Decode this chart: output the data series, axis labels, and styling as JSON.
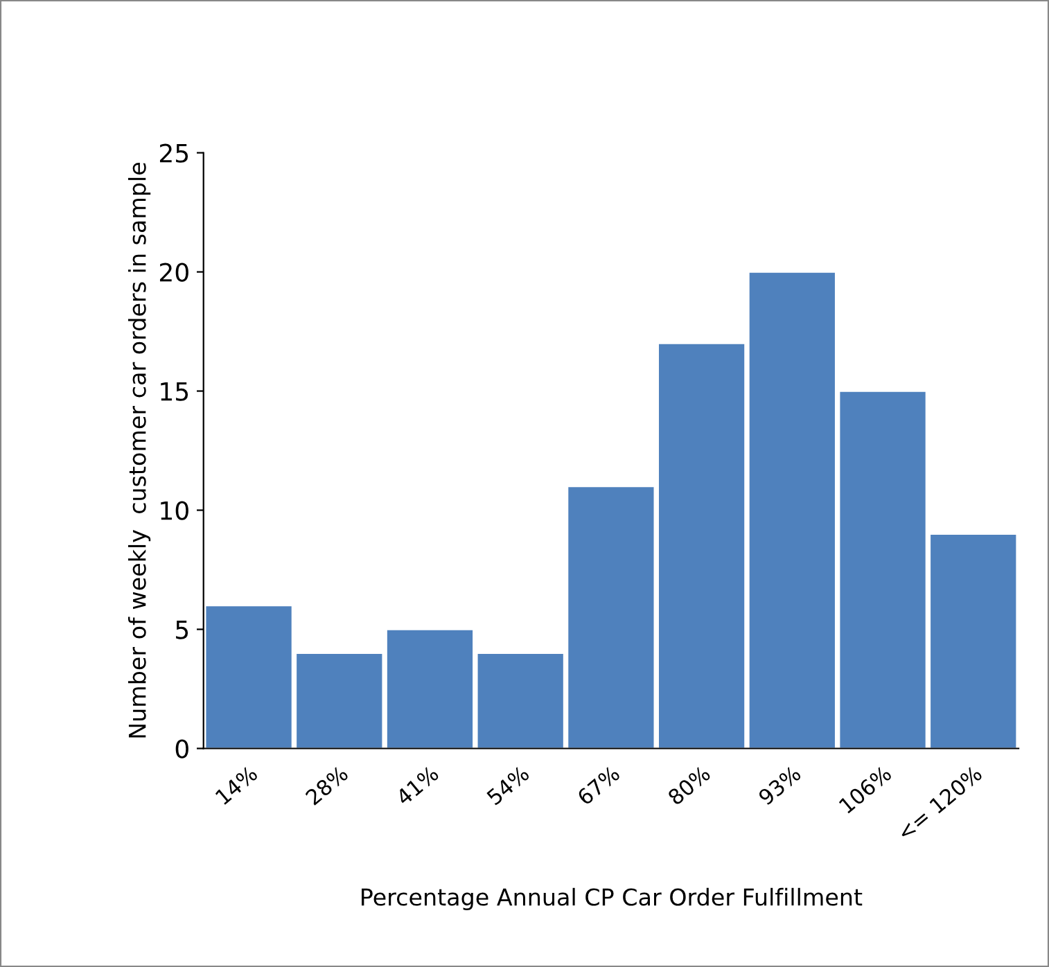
{
  "chart_data": {
    "type": "bar",
    "xlabel": "Percentage Annual CP Car Order Fulfillment",
    "ylabel": "Number of weekly  customer car orders in sample",
    "categories": [
      "14%",
      "28%",
      "41%",
      "54%",
      "67%",
      "80%",
      "93%",
      "106%",
      "<= 120%"
    ],
    "values": [
      6,
      4,
      5,
      4,
      11,
      17,
      20,
      15,
      9
    ],
    "color": "#4f81bd",
    "ylim": [
      0,
      25
    ],
    "yticks": [
      0,
      5,
      10,
      15,
      20,
      25
    ],
    "grid": false,
    "legend": false
  }
}
